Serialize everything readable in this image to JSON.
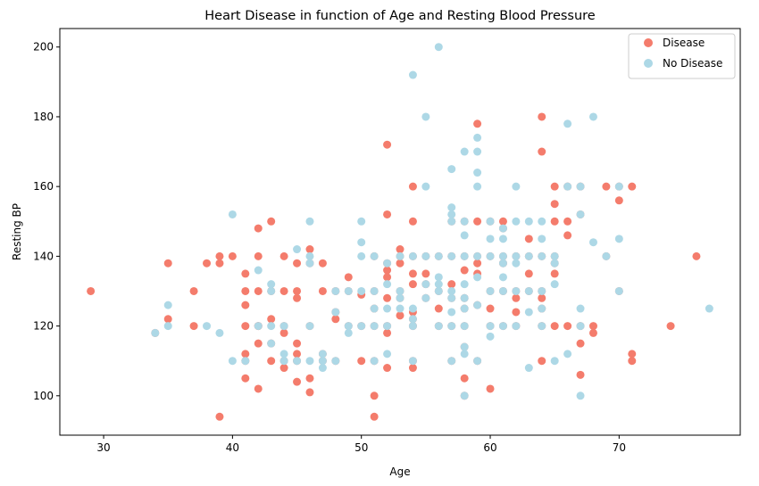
{
  "chart_data": {
    "type": "scatter",
    "title": "Heart Disease in function of Age and Resting Blood Pressure",
    "xlabel": "Age",
    "ylabel": "Resting BP",
    "xlim": [
      26.6,
      79.4
    ],
    "ylim": [
      88.7,
      205.3
    ],
    "xticks": [
      30,
      40,
      50,
      60,
      70
    ],
    "yticks": [
      100,
      120,
      140,
      160,
      180,
      200
    ],
    "grid": false,
    "legend": "top-right",
    "series": [
      {
        "name": "Disease",
        "color": "#f47c6c",
        "points": [
          [
            29,
            130
          ],
          [
            34,
            118
          ],
          [
            35,
            138
          ],
          [
            35,
            122
          ],
          [
            37,
            130
          ],
          [
            37,
            120
          ],
          [
            38,
            138
          ],
          [
            39,
            140
          ],
          [
            39,
            138
          ],
          [
            39,
            94
          ],
          [
            40,
            140
          ],
          [
            41,
            130
          ],
          [
            41,
            135
          ],
          [
            41,
            126
          ],
          [
            41,
            120
          ],
          [
            41,
            112
          ],
          [
            41,
            110
          ],
          [
            41,
            105
          ],
          [
            42,
            148
          ],
          [
            42,
            140
          ],
          [
            42,
            130
          ],
          [
            42,
            120
          ],
          [
            42,
            120
          ],
          [
            42,
            115
          ],
          [
            42,
            102
          ],
          [
            43,
            150
          ],
          [
            43,
            130
          ],
          [
            43,
            122
          ],
          [
            43,
            115
          ],
          [
            43,
            110
          ],
          [
            44,
            140
          ],
          [
            44,
            130
          ],
          [
            44,
            120
          ],
          [
            44,
            118
          ],
          [
            44,
            110
          ],
          [
            44,
            108
          ],
          [
            45,
            138
          ],
          [
            45,
            130
          ],
          [
            45,
            128
          ],
          [
            45,
            115
          ],
          [
            45,
            112
          ],
          [
            45,
            110
          ],
          [
            45,
            104
          ],
          [
            46,
            142
          ],
          [
            46,
            138
          ],
          [
            46,
            120
          ],
          [
            46,
            105
          ],
          [
            46,
            101
          ],
          [
            47,
            138
          ],
          [
            47,
            130
          ],
          [
            47,
            112
          ],
          [
            47,
            110
          ],
          [
            48,
            130
          ],
          [
            48,
            124
          ],
          [
            48,
            122
          ],
          [
            48,
            110
          ],
          [
            49,
            130
          ],
          [
            49,
            134
          ],
          [
            49,
            120
          ],
          [
            50,
            129
          ],
          [
            50,
            120
          ],
          [
            50,
            110
          ],
          [
            51,
            140
          ],
          [
            51,
            130
          ],
          [
            51,
            125
          ],
          [
            51,
            120
          ],
          [
            51,
            110
          ],
          [
            51,
            100
          ],
          [
            51,
            94
          ],
          [
            52,
            172
          ],
          [
            52,
            152
          ],
          [
            52,
            138
          ],
          [
            52,
            136
          ],
          [
            52,
            134
          ],
          [
            52,
            128
          ],
          [
            52,
            120
          ],
          [
            52,
            118
          ],
          [
            52,
            108
          ],
          [
            53,
            142
          ],
          [
            53,
            140
          ],
          [
            53,
            138
          ],
          [
            53,
            130
          ],
          [
            53,
            128
          ],
          [
            53,
            123
          ],
          [
            54,
            160
          ],
          [
            54,
            150
          ],
          [
            54,
            140
          ],
          [
            54,
            135
          ],
          [
            54,
            132
          ],
          [
            54,
            124
          ],
          [
            54,
            122
          ],
          [
            54,
            120
          ],
          [
            54,
            110
          ],
          [
            54,
            108
          ],
          [
            55,
            140
          ],
          [
            55,
            135
          ],
          [
            55,
            132
          ],
          [
            55,
            128
          ],
          [
            56,
            140
          ],
          [
            56,
            130
          ],
          [
            56,
            125
          ],
          [
            56,
            120
          ],
          [
            57,
            150
          ],
          [
            57,
            140
          ],
          [
            57,
            132
          ],
          [
            57,
            128
          ],
          [
            57,
            120
          ],
          [
            57,
            110
          ],
          [
            58,
            150
          ],
          [
            58,
            140
          ],
          [
            58,
            136
          ],
          [
            58,
            128
          ],
          [
            58,
            125
          ],
          [
            58,
            120
          ],
          [
            58,
            114
          ],
          [
            58,
            105
          ],
          [
            58,
            100
          ],
          [
            59,
            178
          ],
          [
            59,
            150
          ],
          [
            59,
            140
          ],
          [
            59,
            138
          ],
          [
            59,
            135
          ],
          [
            59,
            126
          ],
          [
            59,
            110
          ],
          [
            60,
            150
          ],
          [
            60,
            140
          ],
          [
            60,
            130
          ],
          [
            60,
            125
          ],
          [
            60,
            120
          ],
          [
            60,
            102
          ],
          [
            61,
            150
          ],
          [
            61,
            148
          ],
          [
            61,
            140
          ],
          [
            61,
            138
          ],
          [
            61,
            130
          ],
          [
            61,
            120
          ],
          [
            62,
            140
          ],
          [
            62,
            130
          ],
          [
            62,
            128
          ],
          [
            62,
            124
          ],
          [
            62,
            120
          ],
          [
            63,
            145
          ],
          [
            63,
            140
          ],
          [
            63,
            135
          ],
          [
            63,
            130
          ],
          [
            64,
            180
          ],
          [
            64,
            170
          ],
          [
            64,
            140
          ],
          [
            64,
            130
          ],
          [
            64,
            128
          ],
          [
            64,
            125
          ],
          [
            64,
            120
          ],
          [
            64,
            110
          ],
          [
            65,
            160
          ],
          [
            65,
            155
          ],
          [
            65,
            150
          ],
          [
            65,
            140
          ],
          [
            65,
            138
          ],
          [
            65,
            135
          ],
          [
            65,
            120
          ],
          [
            66,
            160
          ],
          [
            66,
            150
          ],
          [
            66,
            146
          ],
          [
            66,
            120
          ],
          [
            67,
            160
          ],
          [
            67,
            152
          ],
          [
            67,
            120
          ],
          [
            67,
            115
          ],
          [
            67,
            106
          ],
          [
            68,
            120
          ],
          [
            68,
            118
          ],
          [
            69,
            160
          ],
          [
            69,
            140
          ],
          [
            70,
            160
          ],
          [
            70,
            156
          ],
          [
            70,
            130
          ],
          [
            71,
            160
          ],
          [
            71,
            112
          ],
          [
            71,
            110
          ],
          [
            74,
            120
          ],
          [
            76,
            140
          ]
        ]
      },
      {
        "name": "No Disease",
        "color": "#add8e6",
        "points": [
          [
            34,
            118
          ],
          [
            35,
            126
          ],
          [
            35,
            120
          ],
          [
            38,
            120
          ],
          [
            39,
            118
          ],
          [
            40,
            152
          ],
          [
            40,
            110
          ],
          [
            41,
            110
          ],
          [
            42,
            136
          ],
          [
            42,
            120
          ],
          [
            43,
            132
          ],
          [
            43,
            130
          ],
          [
            43,
            120
          ],
          [
            43,
            115
          ],
          [
            44,
            120
          ],
          [
            44,
            112
          ],
          [
            44,
            110
          ],
          [
            45,
            142
          ],
          [
            45,
            110
          ],
          [
            46,
            150
          ],
          [
            46,
            140
          ],
          [
            46,
            138
          ],
          [
            46,
            120
          ],
          [
            46,
            110
          ],
          [
            47,
            112
          ],
          [
            47,
            110
          ],
          [
            47,
            108
          ],
          [
            48,
            130
          ],
          [
            48,
            124
          ],
          [
            48,
            110
          ],
          [
            49,
            130
          ],
          [
            49,
            120
          ],
          [
            49,
            118
          ],
          [
            50,
            150
          ],
          [
            50,
            144
          ],
          [
            50,
            140
          ],
          [
            50,
            130
          ],
          [
            50,
            120
          ],
          [
            51,
            140
          ],
          [
            51,
            130
          ],
          [
            51,
            125
          ],
          [
            51,
            120
          ],
          [
            51,
            110
          ],
          [
            52,
            138
          ],
          [
            52,
            132
          ],
          [
            52,
            125
          ],
          [
            52,
            120
          ],
          [
            52,
            112
          ],
          [
            53,
            140
          ],
          [
            53,
            130
          ],
          [
            53,
            128
          ],
          [
            53,
            125
          ],
          [
            54,
            192
          ],
          [
            54,
            140
          ],
          [
            54,
            125
          ],
          [
            54,
            122
          ],
          [
            54,
            120
          ],
          [
            54,
            110
          ],
          [
            55,
            180
          ],
          [
            55,
            160
          ],
          [
            55,
            140
          ],
          [
            55,
            132
          ],
          [
            55,
            128
          ],
          [
            56,
            200
          ],
          [
            56,
            140
          ],
          [
            56,
            134
          ],
          [
            56,
            132
          ],
          [
            56,
            130
          ],
          [
            56,
            120
          ],
          [
            57,
            165
          ],
          [
            57,
            154
          ],
          [
            57,
            152
          ],
          [
            57,
            150
          ],
          [
            57,
            140
          ],
          [
            57,
            130
          ],
          [
            57,
            128
          ],
          [
            57,
            124
          ],
          [
            57,
            120
          ],
          [
            57,
            110
          ],
          [
            58,
            170
          ],
          [
            58,
            150
          ],
          [
            58,
            146
          ],
          [
            58,
            140
          ],
          [
            58,
            132
          ],
          [
            58,
            128
          ],
          [
            58,
            125
          ],
          [
            58,
            120
          ],
          [
            58,
            114
          ],
          [
            58,
            112
          ],
          [
            58,
            100
          ],
          [
            59,
            174
          ],
          [
            59,
            170
          ],
          [
            59,
            164
          ],
          [
            59,
            160
          ],
          [
            59,
            140
          ],
          [
            59,
            134
          ],
          [
            59,
            126
          ],
          [
            59,
            110
          ],
          [
            60,
            150
          ],
          [
            60,
            145
          ],
          [
            60,
            140
          ],
          [
            60,
            130
          ],
          [
            60,
            120
          ],
          [
            60,
            117
          ],
          [
            61,
            148
          ],
          [
            61,
            145
          ],
          [
            61,
            140
          ],
          [
            61,
            138
          ],
          [
            61,
            134
          ],
          [
            61,
            130
          ],
          [
            61,
            120
          ],
          [
            62,
            160
          ],
          [
            62,
            150
          ],
          [
            62,
            140
          ],
          [
            62,
            138
          ],
          [
            62,
            130
          ],
          [
            62,
            120
          ],
          [
            63,
            150
          ],
          [
            63,
            140
          ],
          [
            63,
            130
          ],
          [
            63,
            124
          ],
          [
            63,
            108
          ],
          [
            64,
            150
          ],
          [
            64,
            145
          ],
          [
            64,
            140
          ],
          [
            64,
            130
          ],
          [
            64,
            125
          ],
          [
            64,
            120
          ],
          [
            65,
            140
          ],
          [
            65,
            138
          ],
          [
            65,
            132
          ],
          [
            65,
            110
          ],
          [
            66,
            178
          ],
          [
            66,
            160
          ],
          [
            66,
            112
          ],
          [
            67,
            160
          ],
          [
            67,
            152
          ],
          [
            67,
            125
          ],
          [
            67,
            120
          ],
          [
            67,
            100
          ],
          [
            68,
            180
          ],
          [
            68,
            144
          ],
          [
            69,
            140
          ],
          [
            70,
            160
          ],
          [
            70,
            145
          ],
          [
            70,
            130
          ],
          [
            77,
            125
          ]
        ]
      }
    ]
  }
}
